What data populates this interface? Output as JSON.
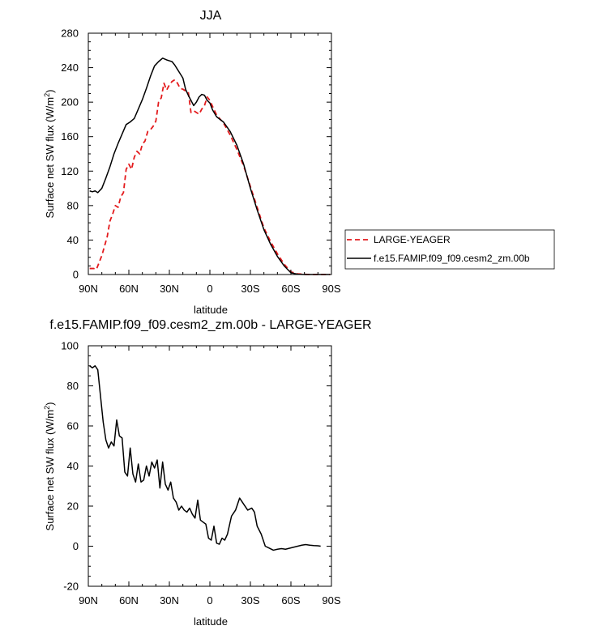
{
  "chart_data": [
    {
      "type": "line",
      "title": "JJA",
      "xlabel": "latitude",
      "ylabel": "Surface net SW flux (W/m",
      "ylabel_sup": "2",
      "ylabel_close": ")",
      "xlim": [
        90,
        -90
      ],
      "ylim": [
        0,
        280
      ],
      "xticks": [
        90,
        60,
        30,
        0,
        -30,
        -60,
        -90
      ],
      "xtick_labels": [
        "90N",
        "60N",
        "30N",
        "0",
        "30S",
        "60S",
        "90S"
      ],
      "yticks": [
        0,
        40,
        80,
        120,
        160,
        200,
        240,
        280
      ],
      "ytick_labels": [
        "0",
        "40",
        "80",
        "120",
        "160",
        "200",
        "240",
        "280"
      ],
      "legend_position": "right, outside plot area",
      "series": [
        {
          "name": "LARGE-YEAGER",
          "color": "#e31a1c",
          "dash": "dashed",
          "x": [
            89,
            86,
            84,
            80,
            76,
            74,
            72,
            70,
            68,
            66,
            64,
            62,
            60,
            58,
            56,
            54,
            52,
            50,
            48,
            46,
            44,
            42,
            40,
            38,
            36,
            34,
            32,
            30,
            28,
            26,
            24,
            22,
            20,
            18,
            16,
            14,
            12,
            10,
            8,
            6,
            4,
            2,
            0,
            -2,
            -5,
            -10,
            -15,
            -20,
            -25,
            -30,
            -35,
            -40,
            -45,
            -50,
            -55,
            -60,
            -65,
            -70,
            -74,
            -78,
            -82,
            -86,
            -89
          ],
          "y": [
            7,
            7,
            6,
            22,
            44,
            62,
            70,
            80,
            78,
            90,
            95,
            122,
            128,
            122,
            136,
            143,
            140,
            151,
            155,
            166,
            168,
            172,
            178,
            200,
            205,
            222,
            214,
            220,
            224,
            226,
            222,
            216,
            215,
            213,
            212,
            188,
            190,
            188,
            186,
            192,
            196,
            206,
            202,
            195,
            185,
            176,
            162,
            145,
            126,
            102,
            78,
            54,
            38,
            24,
            12,
            3,
            0.8,
            0.2,
            0,
            0,
            0,
            0,
            0
          ]
        },
        {
          "name": "f.e15.FAMIP.f09_f09.cesm2_zm.00b",
          "color": "#000000",
          "dash": "solid",
          "x": [
            89,
            87,
            85,
            83,
            80,
            77,
            74,
            71,
            68,
            65,
            62,
            59,
            56,
            53,
            50,
            47,
            44,
            41,
            38,
            35,
            32,
            30,
            28,
            26,
            24,
            22,
            20,
            18,
            16,
            14,
            12,
            10,
            8,
            6,
            4,
            2,
            0,
            -2,
            -5,
            -10,
            -15,
            -20,
            -25,
            -30,
            -35,
            -40,
            -45,
            -50,
            -55,
            -60,
            -65,
            -70,
            -75,
            -80,
            -86,
            -89
          ],
          "y": [
            97,
            96,
            97,
            95,
            100,
            112,
            125,
            140,
            152,
            163,
            174,
            177,
            181,
            192,
            203,
            216,
            230,
            242,
            247,
            251,
            249,
            248,
            247,
            243,
            238,
            233,
            228,
            215,
            208,
            202,
            196,
            200,
            206,
            209,
            208,
            202,
            199,
            191,
            183,
            177,
            166,
            150,
            128,
            100,
            75,
            52,
            35,
            21,
            10,
            2,
            0.4,
            0,
            0,
            0,
            0,
            0
          ]
        }
      ]
    },
    {
      "type": "line",
      "title": "f.e15.FAMIP.f09_f09.cesm2_zm.00b - LARGE-YEAGER",
      "xlabel": "latitude",
      "ylabel": "Surface net SW flux (W/m",
      "ylabel_sup": "2",
      "ylabel_close": ")",
      "xlim": [
        90,
        -90
      ],
      "ylim": [
        -20,
        100
      ],
      "xticks": [
        90,
        60,
        30,
        0,
        -30,
        -60,
        -90
      ],
      "xtick_labels": [
        "90N",
        "60N",
        "30N",
        "0",
        "30S",
        "60S",
        "90S"
      ],
      "yticks": [
        -20,
        0,
        20,
        40,
        60,
        80,
        100
      ],
      "ytick_labels": [
        "-20",
        "0",
        "20",
        "40",
        "60",
        "80",
        "100"
      ],
      "series": [
        {
          "name": "",
          "color": "#000000",
          "dash": "solid",
          "x": [
            89,
            87,
            85,
            83,
            81,
            79,
            77,
            75,
            73,
            71,
            69,
            67,
            65,
            63,
            61,
            59,
            57,
            55,
            53,
            51,
            49,
            47,
            45,
            43,
            41,
            39,
            37,
            35,
            33,
            31,
            29,
            27,
            25,
            23,
            21,
            19,
            17,
            15,
            13,
            11,
            9,
            7,
            5,
            3,
            1,
            -1,
            -3,
            -5,
            -7,
            -9,
            -11,
            -13,
            -16,
            -19,
            -22,
            -25,
            -28,
            -31,
            -33,
            -35,
            -38,
            -41,
            -44,
            -47,
            -50,
            -53,
            -56,
            -59,
            -62,
            -65,
            -68,
            -71,
            -74,
            -77,
            -80,
            -82
          ],
          "y": [
            90,
            89,
            90,
            88,
            75,
            62,
            53,
            49,
            52,
            50,
            63,
            55,
            54,
            37,
            35,
            49,
            36,
            32,
            41,
            32,
            33,
            40,
            35,
            42,
            39,
            43,
            29,
            42,
            31,
            28,
            32,
            24,
            22,
            18,
            20,
            18,
            17,
            19,
            16,
            14,
            23,
            13,
            12,
            11,
            4,
            3,
            10,
            1.5,
            1,
            4,
            3,
            6,
            15,
            18,
            24,
            21,
            18,
            19,
            17,
            10,
            6,
            0,
            -1,
            -2,
            -1.5,
            -1.2,
            -1.5,
            -1,
            -0.5,
            0,
            0.5,
            0.8,
            0.5,
            0.3,
            0.2,
            0
          ]
        }
      ]
    }
  ]
}
